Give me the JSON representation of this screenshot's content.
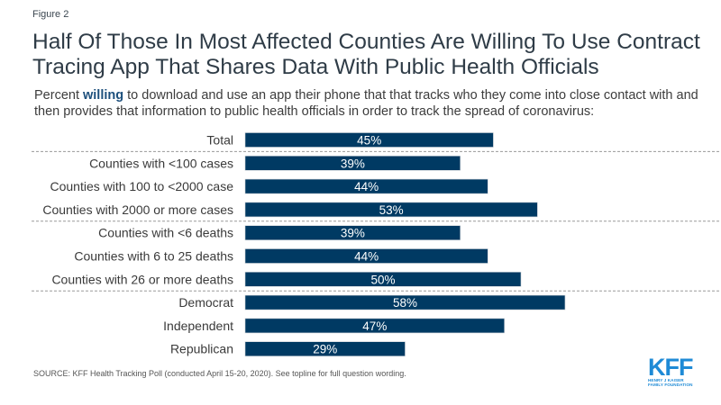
{
  "figure_label": "Figure 2",
  "title": "Half Of Those In Most Affected Counties Are Willing To Use Contract Tracing App That Shares Data With Public Health Officials",
  "subtitle": {
    "prefix": "Percent ",
    "emphasis": "willing",
    "suffix": " to download and use an app their phone that that tracks who they come into close contact with and then provides that information to public health officials in order to track the spread of coronavirus:"
  },
  "source": "SOURCE: KFF Health Tracking Poll (conducted April 15-20, 2020). See topline for full question wording.",
  "logo": {
    "name": "KFF",
    "line1": "HENRY J KAISER",
    "line2": "FAMILY FOUNDATION"
  },
  "colors": {
    "bar": "#003a63",
    "bar_label": "#ffffff",
    "divider": "#9a9a9a",
    "category_text": "#3a3a3a",
    "logo": "#1e8ad6"
  },
  "chart_data": {
    "type": "bar",
    "orientation": "horizontal",
    "title": "Half Of Those In Most Affected Counties Are Willing To Use Contract Tracing App That Shares Data With Public Health Officials",
    "xlabel": "",
    "ylabel": "",
    "xlim": [
      0,
      100
    ],
    "grid": false,
    "legend": "none",
    "categories": [
      "Total",
      "Counties with <100 cases",
      "Counties with 100 to <2000 case",
      "Counties with 2000 or more cases",
      "Counties with <6 deaths",
      "Counties with 6 to 25 deaths",
      "Counties with 26 or more deaths",
      "Democrat",
      "Independent",
      "Republican"
    ],
    "values": [
      45,
      39,
      44,
      53,
      39,
      44,
      50,
      58,
      47,
      29
    ],
    "data_labels": [
      "45%",
      "39%",
      "44%",
      "53%",
      "39%",
      "44%",
      "50%",
      "58%",
      "47%",
      "29%"
    ],
    "group_dividers_after": [
      0,
      3,
      6
    ]
  }
}
